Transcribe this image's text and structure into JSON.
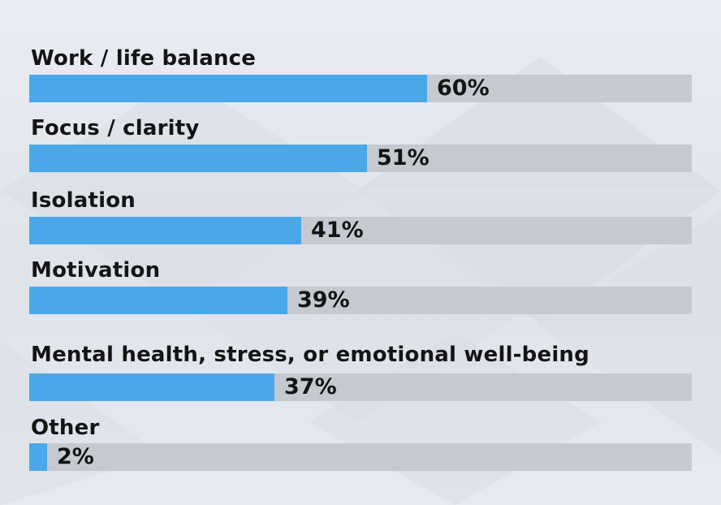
{
  "chart_data": {
    "type": "bar",
    "orientation": "horizontal",
    "categories": [
      "Work / life balance",
      "Focus / clarity",
      "Isolation",
      "Motivation",
      "Mental health, stress, or emotional well-being",
      "Other"
    ],
    "values": [
      60,
      51,
      41,
      39,
      37,
      2
    ],
    "value_labels": [
      "60%",
      "51%",
      "41%",
      "39%",
      "37%",
      "2%"
    ],
    "xlim": [
      0,
      100
    ],
    "grid": false,
    "legend": "none"
  },
  "colors": {
    "bar_fill": "#4aa8e8",
    "bar_track": "#c5cad1",
    "text": "#141414",
    "background": "#e4e8ee"
  }
}
